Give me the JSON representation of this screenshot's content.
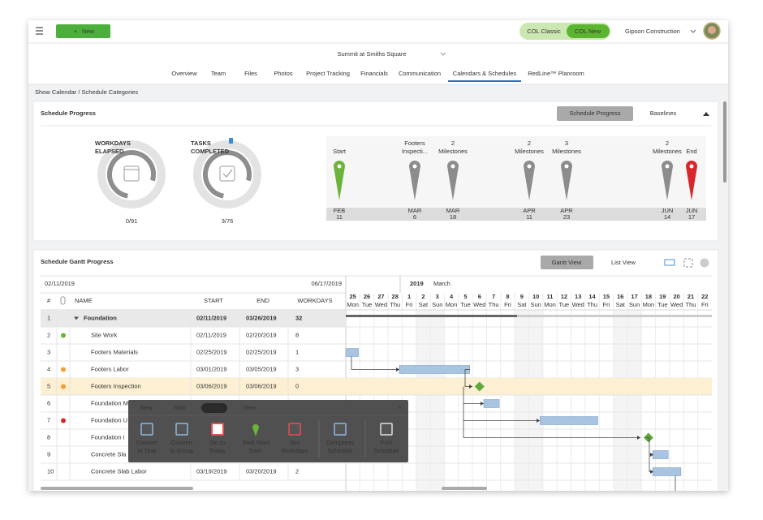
{
  "header": {
    "new_button": "New",
    "view_toggle": [
      "COL Classic",
      "COL New"
    ],
    "active_view": 1,
    "company": "Gipson Construction"
  },
  "project": {
    "title": "Summit at Smiths Square",
    "tabs": [
      "Overview",
      "Team",
      "Files",
      "Photos",
      "Project Tracking",
      "Financials",
      "Communication",
      "Calendars & Schedules",
      "RedLine™ Planroom"
    ],
    "active_tab": 7
  },
  "link": "Show Calendar / Schedule Categories",
  "schedule_progress": {
    "title": "Schedule Progress",
    "buttons": [
      "Schedule Progress",
      "Baselines"
    ],
    "gauges": [
      {
        "label": [
          "WORKDAYS",
          "ELAPSED"
        ],
        "count": "0/91"
      },
      {
        "label": [
          "TASKS",
          "COMPLETED"
        ],
        "count": "3/76"
      }
    ],
    "milestones": [
      {
        "label": [
          "Start"
        ],
        "month": "FEB",
        "day": "11",
        "color": "#6bb33a"
      },
      {
        "label": [
          "Footers",
          "Inspecti..."
        ],
        "month": "MAR",
        "day": "6",
        "color": "#8c8c8c"
      },
      {
        "label": [
          "2",
          "Milestones"
        ],
        "month": "MAR",
        "day": "18",
        "color": "#8c8c8c"
      },
      {
        "label": [
          "2",
          "Milestones"
        ],
        "month": "APR",
        "day": "11",
        "color": "#8c8c8c"
      },
      {
        "label": [
          "3",
          "Milestones"
        ],
        "month": "APR",
        "day": "23",
        "color": "#8c8c8c"
      },
      {
        "label": [
          "2",
          "Milestones"
        ],
        "month": "JUN",
        "day": "14",
        "color": "#8c8c8c"
      },
      {
        "label": [
          "End"
        ],
        "month": "JUN",
        "day": "17",
        "color": "#d9262b"
      }
    ]
  },
  "gantt": {
    "title": "Schedule Gantt Progress",
    "buttons": [
      "Gantt View",
      "List View"
    ],
    "range": [
      "02/11/2019",
      "06/17/2019"
    ],
    "columns": [
      "#",
      "NAME",
      "START",
      "END",
      "WORKDAYS"
    ],
    "rows": [
      {
        "num": 1,
        "name": "Foundation",
        "start": "02/11/2019",
        "end": "03/26/2019",
        "workdays": 32,
        "group": true
      },
      {
        "num": 2,
        "name": "Site Work",
        "start": "02/11/2019",
        "end": "02/20/2019",
        "workdays": 8,
        "status": "#6bb33a"
      },
      {
        "num": 3,
        "name": "Footers Materials",
        "start": "02/25/2019",
        "end": "02/25/2019",
        "workdays": 1
      },
      {
        "num": 4,
        "name": "Footers Labor",
        "start": "03/01/2019",
        "end": "03/05/2019",
        "workdays": 3,
        "status": "#f0a030"
      },
      {
        "num": 5,
        "name": "Footers Inspection",
        "start": "03/06/2019",
        "end": "03/06/2019",
        "workdays": 0,
        "status": "#f0a030",
        "highlighted": true
      },
      {
        "num": 6,
        "name": "Foundation M"
      },
      {
        "num": 7,
        "name": "Foundation U",
        "status": "#d9262b"
      },
      {
        "num": 8,
        "name": "Foundation I"
      },
      {
        "num": 9,
        "name": "Concrete Sla"
      },
      {
        "num": 10,
        "name": "Concrete Slab Labor",
        "start": "03/19/2019",
        "end": "03/20/2019",
        "workdays": 2
      }
    ],
    "year": "2019",
    "month": "March",
    "days": [
      {
        "d": 25,
        "w": "Mon"
      },
      {
        "d": 26,
        "w": "Tue"
      },
      {
        "d": 27,
        "w": "Wed"
      },
      {
        "d": 28,
        "w": "Thu"
      },
      {
        "d": 1,
        "w": "Fri"
      },
      {
        "d": 2,
        "w": "Sat"
      },
      {
        "d": 3,
        "w": "Sun"
      },
      {
        "d": 4,
        "w": "Mon"
      },
      {
        "d": 5,
        "w": "Tue"
      },
      {
        "d": 6,
        "w": "Wed"
      },
      {
        "d": 7,
        "w": "Thu"
      },
      {
        "d": 8,
        "w": "Fri"
      },
      {
        "d": 9,
        "w": "Sat"
      },
      {
        "d": 10,
        "w": "Sun"
      },
      {
        "d": 11,
        "w": "Mon"
      },
      {
        "d": 12,
        "w": "Tue"
      },
      {
        "d": 13,
        "w": "Wed"
      },
      {
        "d": 14,
        "w": "Thu"
      },
      {
        "d": 15,
        "w": "Fri"
      },
      {
        "d": 16,
        "w": "Sat"
      },
      {
        "d": 17,
        "w": "Sun"
      },
      {
        "d": 18,
        "w": "Mon"
      },
      {
        "d": 19,
        "w": "Tue"
      },
      {
        "d": 20,
        "w": "Wed"
      },
      {
        "d": 21,
        "w": "Thu"
      },
      {
        "d": 22,
        "w": "Fri"
      }
    ]
  },
  "toolbar": {
    "tabs": [
      "New",
      "Task",
      "Tools",
      "View"
    ],
    "active_tab": 2,
    "buttons": [
      [
        "Convert",
        "to Task"
      ],
      [
        "Convert",
        "to Group"
      ],
      [
        "Go to",
        "Today"
      ],
      [
        "Shift Start",
        "Date"
      ],
      [
        "Set",
        "Workdays"
      ],
      [
        "Compress",
        "Schedule"
      ],
      [
        "Print",
        "Schedule"
      ]
    ]
  }
}
